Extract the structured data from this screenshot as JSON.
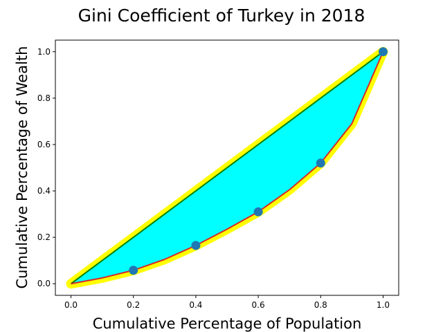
{
  "chart_data": {
    "type": "line",
    "title": "Gini Coefficient of Turkey in 2018",
    "xlabel": "Cumulative Percentage of Population",
    "ylabel": "Cumulative Percentage of Wealth",
    "xlim": [
      -0.05,
      1.05
    ],
    "ylim": [
      -0.05,
      1.05
    ],
    "xticks": [
      "0.0",
      "0.2",
      "0.4",
      "0.6",
      "0.8",
      "1.0"
    ],
    "yticks": [
      "0.0",
      "0.2",
      "0.4",
      "0.6",
      "0.8",
      "1.0"
    ],
    "grid": false,
    "series": [
      {
        "role": "equality-line",
        "x": [
          0,
          1
        ],
        "y": [
          0,
          1
        ],
        "color": "#008000"
      },
      {
        "role": "lorenz-curve",
        "x": [
          0,
          0.1,
          0.2,
          0.3,
          0.4,
          0.5,
          0.6,
          0.7,
          0.8,
          0.9,
          1.0
        ],
        "y": [
          0,
          0.025,
          0.058,
          0.105,
          0.165,
          0.235,
          0.31,
          0.405,
          0.52,
          0.69,
          1.0
        ],
        "color": "#d62728"
      },
      {
        "role": "data-points",
        "x": [
          0.2,
          0.4,
          0.6,
          0.8,
          1.0
        ],
        "y": [
          0.058,
          0.165,
          0.31,
          0.52,
          1.0
        ],
        "color": "#1f77b4"
      }
    ],
    "colors": {
      "fill_between": "#00ffff",
      "outline_glow": "#ffff00",
      "equality_line": "#008000",
      "lorenz_line": "#d62728",
      "markers": "#1f77b4"
    }
  }
}
